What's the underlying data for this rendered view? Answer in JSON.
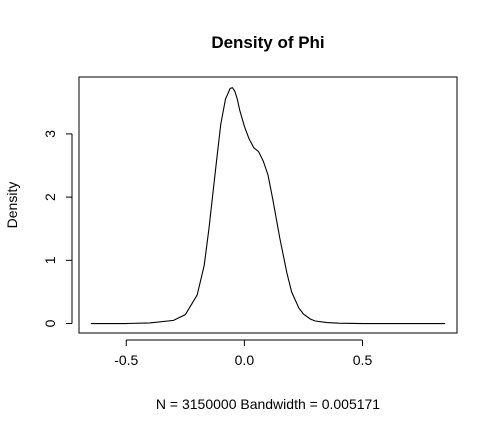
{
  "chart_data": {
    "type": "line",
    "title": "Density of Phi",
    "xlabel": "N = 3150000   Bandwidth = 0.005171",
    "ylabel": "Density",
    "xlim": [
      -0.7,
      0.9
    ],
    "ylim": [
      -0.15,
      3.9
    ],
    "x_ticks": [
      -0.5,
      0.0,
      0.5
    ],
    "x_tick_labels": [
      "-0.5",
      "0.0",
      "0.5"
    ],
    "y_ticks": [
      0,
      1,
      2,
      3
    ],
    "y_tick_labels": [
      "0",
      "1",
      "2",
      "3"
    ],
    "grid": false,
    "series": [
      {
        "x": [
          -0.65,
          -0.5,
          -0.4,
          -0.3,
          -0.25,
          -0.2,
          -0.17,
          -0.15,
          -0.12,
          -0.1,
          -0.08,
          -0.06,
          -0.05,
          -0.04,
          -0.03,
          -0.02,
          0.0,
          0.02,
          0.04,
          0.06,
          0.08,
          0.1,
          0.12,
          0.15,
          0.18,
          0.2,
          0.23,
          0.25,
          0.28,
          0.3,
          0.35,
          0.4,
          0.5,
          0.6,
          0.7,
          0.85
        ],
        "y": [
          0.0,
          0.0,
          0.01,
          0.05,
          0.14,
          0.45,
          0.92,
          1.5,
          2.5,
          3.15,
          3.55,
          3.72,
          3.73,
          3.67,
          3.55,
          3.38,
          3.12,
          2.92,
          2.78,
          2.72,
          2.57,
          2.35,
          1.97,
          1.35,
          0.8,
          0.5,
          0.25,
          0.15,
          0.07,
          0.04,
          0.015,
          0.005,
          0.0,
          0.0,
          0.0,
          0.0
        ]
      }
    ]
  }
}
